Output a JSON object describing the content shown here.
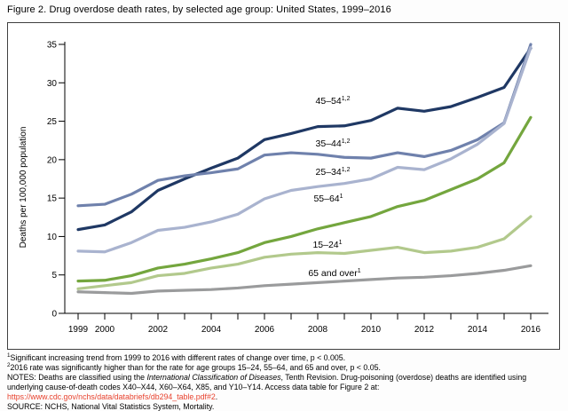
{
  "figure": {
    "title": "Figure 2. Drug overdose death rates, by selected age group: United States, 1999–2016"
  },
  "chart_data": {
    "type": "line",
    "title": "Drug overdose death rates, by selected age group: United States, 1999–2016",
    "xlabel": "",
    "ylabel": "Deaths per 100,000 population",
    "ylim": [
      0,
      35
    ],
    "ytick_interval": 5,
    "grid": false,
    "legend_position": "inline-labels-on-lines",
    "x": [
      1999,
      2000,
      2001,
      2002,
      2003,
      2004,
      2005,
      2006,
      2007,
      2008,
      2009,
      2010,
      2011,
      2012,
      2013,
      2014,
      2015,
      2016
    ],
    "xtick_labels_shown": [
      "1999",
      "2000",
      "2002",
      "2004",
      "2006",
      "2008",
      "2010",
      "2012",
      "2014",
      "2016"
    ],
    "series": [
      {
        "key": "45-54",
        "name": "45–54",
        "sup": "1,2",
        "color": "#1F3864",
        "values": [
          10.9,
          11.5,
          13.2,
          16.0,
          17.5,
          18.9,
          20.2,
          22.6,
          23.4,
          24.3,
          24.4,
          25.1,
          26.7,
          26.3,
          26.9,
          28.1,
          29.4,
          34.5
        ]
      },
      {
        "key": "35-44",
        "name": "35–44",
        "sup": "1,2",
        "color": "#6F81AC",
        "values": [
          14.0,
          14.2,
          15.5,
          17.3,
          17.9,
          18.3,
          18.8,
          20.6,
          20.9,
          20.7,
          20.3,
          20.2,
          20.9,
          20.4,
          21.2,
          22.6,
          24.8,
          35.0
        ]
      },
      {
        "key": "25-34",
        "name": "25–34",
        "sup": "1,2",
        "color": "#A9B3CF",
        "values": [
          8.1,
          8.0,
          9.2,
          10.8,
          11.2,
          11.9,
          12.9,
          14.9,
          16.0,
          16.5,
          16.9,
          17.5,
          19.0,
          18.7,
          20.1,
          22.0,
          24.7,
          34.6
        ]
      },
      {
        "key": "55-64",
        "name": "55–64",
        "sup": "1",
        "color": "#74A63E",
        "values": [
          4.2,
          4.3,
          4.9,
          5.9,
          6.4,
          7.1,
          7.9,
          9.2,
          10.0,
          11.0,
          11.8,
          12.6,
          13.9,
          14.7,
          16.1,
          17.5,
          19.6,
          25.5
        ]
      },
      {
        "key": "15-24",
        "name": "15–24",
        "sup": "1",
        "color": "#B2C98C",
        "values": [
          3.2,
          3.6,
          4.0,
          4.9,
          5.2,
          5.9,
          6.4,
          7.3,
          7.7,
          7.9,
          7.8,
          8.2,
          8.6,
          7.9,
          8.1,
          8.6,
          9.7,
          12.6
        ]
      },
      {
        "key": "65-over",
        "name": "65 and over",
        "sup": "1",
        "color": "#9A9B9C",
        "values": [
          2.8,
          2.7,
          2.6,
          2.9,
          3.0,
          3.1,
          3.3,
          3.6,
          3.8,
          4.0,
          4.2,
          4.4,
          4.6,
          4.7,
          4.9,
          5.2,
          5.6,
          6.2
        ]
      }
    ]
  },
  "footnotes": [
    {
      "sup": "1",
      "text": "Significant increasing trend from 1999 to 2016 with different rates of change over time, p < 0.005."
    },
    {
      "sup": "2",
      "text": "2016 rate was significantly higher than for the rate for age groups 15–24, 55–64, and 65 and over, p < 0.05."
    }
  ],
  "notes": {
    "part1": "NOTES: Deaths are classified using the ",
    "italic": "International Classification of Diseases",
    "part2": ", Tenth Revision. Drug-poisoning (overdose) deaths are identified using underlying cause-of-death codes X40–X44, X60–X64, X85, and Y10–Y14. Access data table for Figure 2 at: ",
    "link": "https://www.cdc.gov/nchs/data/databriefs/db294_table.pdf#2",
    "after_link": "."
  },
  "source": "SOURCE: NCHS, National Vital Statistics System, Mortality."
}
